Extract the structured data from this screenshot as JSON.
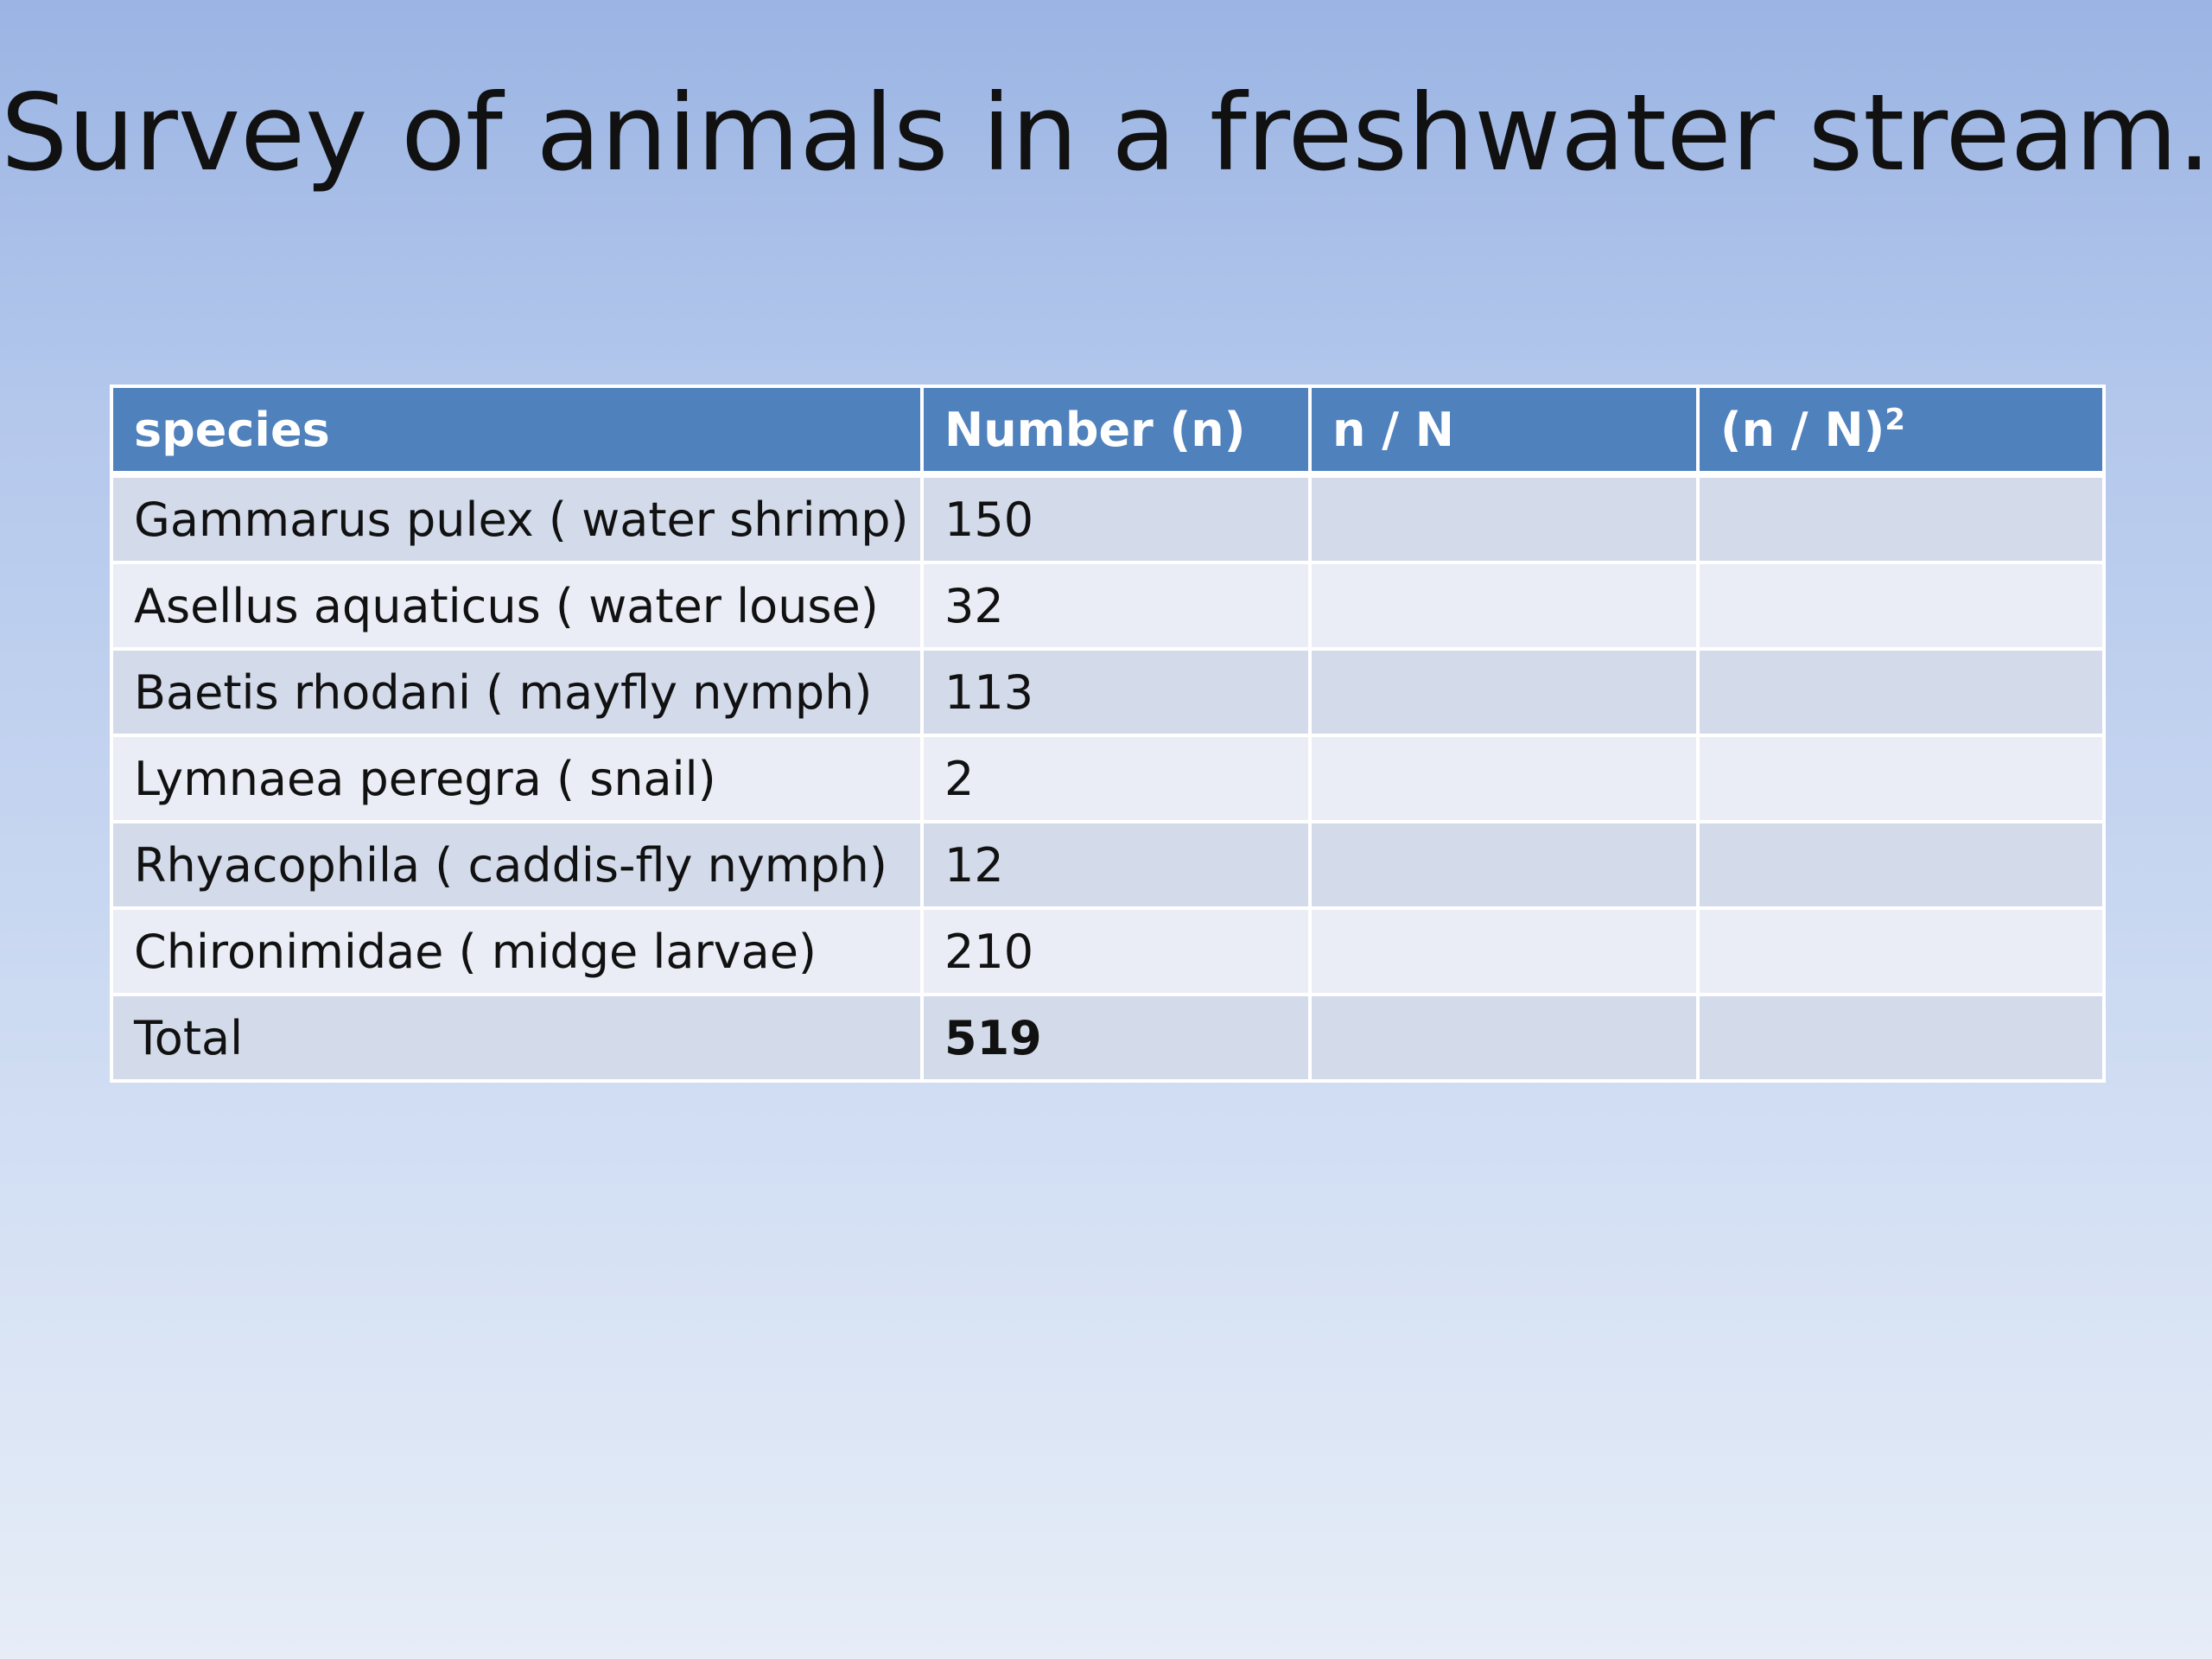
{
  "slide": {
    "title": "Survey of animals in a freshwater stream."
  },
  "table": {
    "headers": {
      "species": "species",
      "number": "Number (n)",
      "ratio": "n / N",
      "ratio_squared_base": "(n / N)",
      "ratio_squared_exp": "2"
    },
    "rows": [
      {
        "species": "Gammarus pulex ( water shrimp)",
        "number": "150",
        "ratio": "",
        "ratio_squared": ""
      },
      {
        "species": "Asellus aquaticus ( water louse)",
        "number": "32",
        "ratio": "",
        "ratio_squared": ""
      },
      {
        "species": "Baetis rhodani ( mayfly nymph)",
        "number": "113",
        "ratio": "",
        "ratio_squared": ""
      },
      {
        "species": "Lymnaea peregra ( snail)",
        "number": "2",
        "ratio": "",
        "ratio_squared": ""
      },
      {
        "species": "Rhyacophila ( caddis-fly nymph)",
        "number": "12",
        "ratio": "",
        "ratio_squared": ""
      },
      {
        "species": "Chironimidae ( midge larvae)",
        "number": "210",
        "ratio": "",
        "ratio_squared": ""
      }
    ],
    "total": {
      "label": "Total",
      "number": "519",
      "ratio": "",
      "ratio_squared": ""
    }
  },
  "colors": {
    "header_fill": "#4f81bd",
    "row_band_dark": "#d3dbeb",
    "row_band_light": "#eaedf5",
    "background_top": "#9bb4e3",
    "background_bottom": "#e6edf7"
  }
}
